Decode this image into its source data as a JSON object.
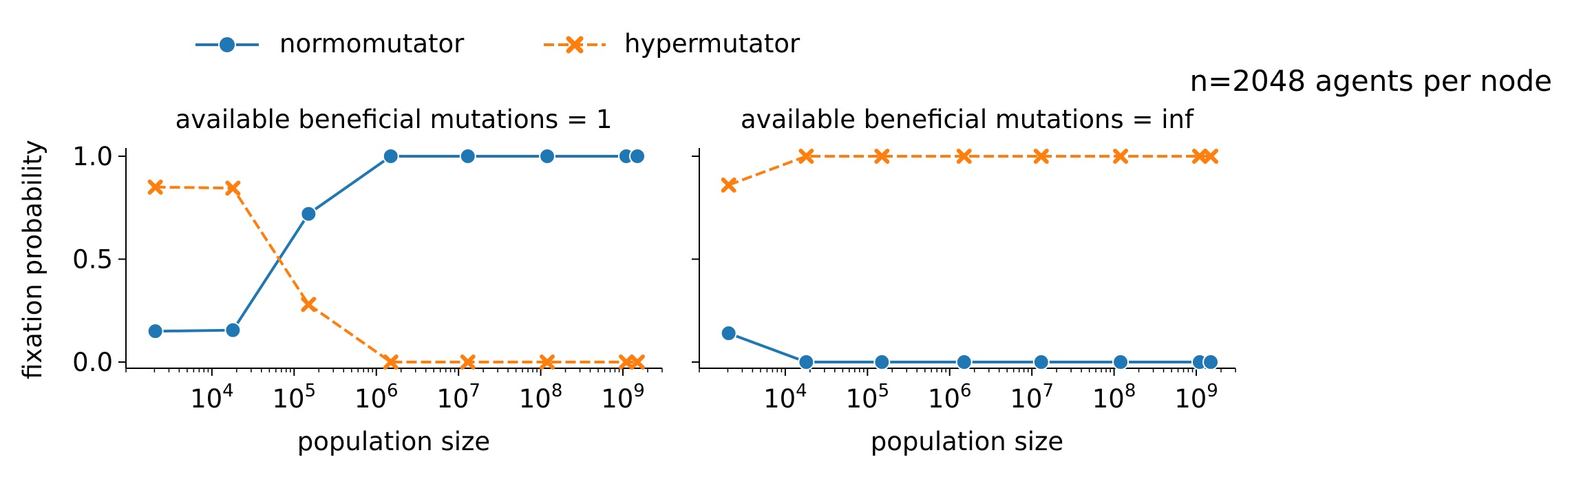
{
  "legend": {
    "items": [
      {
        "label": "normomutator",
        "color": "#1f77b4",
        "marker": "circle-marker",
        "dash": "solid"
      },
      {
        "label": "hypermutator",
        "color": "#ff7f0e",
        "marker": "x-marker",
        "dash": "dashed"
      }
    ]
  },
  "suptitle": "n=2048 agents per node",
  "chart_data": [
    {
      "type": "line",
      "title": "available beneficial mutations = 1",
      "xlabel": "population size",
      "ylabel": "fixation probability",
      "xscale": "log",
      "xlim": [
        900,
        3000000000
      ],
      "ylim": [
        -0.03,
        1.03
      ],
      "xticks": [
        "10^4",
        "10^5",
        "10^6",
        "10^7",
        "10^8",
        "10^9"
      ],
      "yticks": [
        "0.0",
        "0.5",
        "1.0"
      ],
      "grid": false,
      "series": [
        {
          "name": "normomutator",
          "x": [
            2048,
            18000,
            150000,
            1500000,
            13000000,
            120000000,
            1100000000,
            1500000000
          ],
          "y": [
            0.15,
            0.155,
            0.72,
            1.0,
            1.0,
            1.0,
            1.0,
            1.0
          ]
        },
        {
          "name": "hypermutator",
          "x": [
            2048,
            18000,
            150000,
            1500000,
            13000000,
            120000000,
            1100000000,
            1500000000
          ],
          "y": [
            0.85,
            0.845,
            0.28,
            0.0,
            0.0,
            0.0,
            0.0,
            0.0
          ]
        }
      ]
    },
    {
      "type": "line",
      "title": "available beneficial mutations = inf",
      "xlabel": "population size",
      "ylabel": "",
      "xscale": "log",
      "xlim": [
        900,
        3000000000
      ],
      "ylim": [
        -0.03,
        1.03
      ],
      "xticks": [
        "10^4",
        "10^5",
        "10^6",
        "10^7",
        "10^8",
        "10^9"
      ],
      "yticks": [
        "0.0",
        "0.5",
        "1.0"
      ],
      "grid": false,
      "series": [
        {
          "name": "normomutator",
          "x": [
            2048,
            18000,
            150000,
            1500000,
            13000000,
            120000000,
            1100000000,
            1500000000
          ],
          "y": [
            0.14,
            0.0,
            0.0,
            0.0,
            0.0,
            0.0,
            0.0,
            0.0
          ]
        },
        {
          "name": "hypermutator",
          "x": [
            2048,
            18000,
            150000,
            1500000,
            13000000,
            120000000,
            1100000000,
            1500000000
          ],
          "y": [
            0.86,
            1.0,
            1.0,
            1.0,
            1.0,
            1.0,
            1.0,
            1.0
          ]
        }
      ]
    }
  ]
}
